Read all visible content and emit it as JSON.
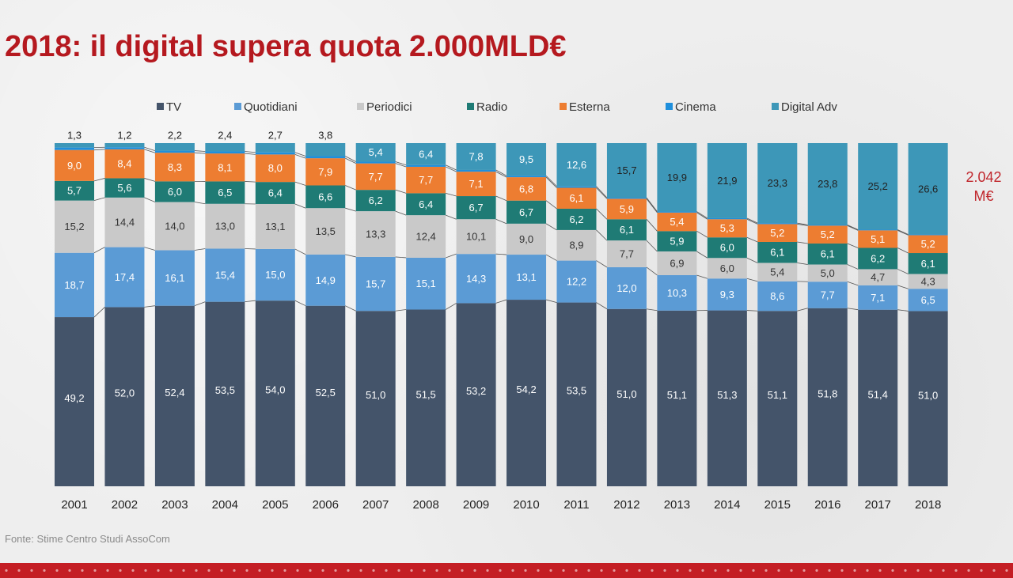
{
  "title": "2018: il digital supera quota 2.000MLD€",
  "total_label": {
    "line1": "2.042",
    "line2": "M€"
  },
  "source": "Fonte: Stime Centro Studi AssoCom",
  "colors": {
    "title": "#b5191f",
    "TV": "#44546a",
    "Quotidiani": "#5b9bd5",
    "Periodici": "#c9c9c9",
    "Radio": "#1f7b75",
    "Esterna": "#ed7d31",
    "Cinema": "#1f8fdc",
    "Digital Adv": "#3d97b8"
  },
  "chart_data": {
    "type": "bar",
    "stacked": true,
    "percent": true,
    "legend_position": "top",
    "grid": false,
    "categories": [
      "2001",
      "2002",
      "2003",
      "2004",
      "2005",
      "2006",
      "2007",
      "2008",
      "2009",
      "2010",
      "2011",
      "2012",
      "2013",
      "2014",
      "2015",
      "2016",
      "2017",
      "2018"
    ],
    "series": [
      {
        "name": "TV",
        "values": [
          49.2,
          52.0,
          52.4,
          53.5,
          54.0,
          52.5,
          51.0,
          51.5,
          53.2,
          54.2,
          53.5,
          51.0,
          51.1,
          51.3,
          51.1,
          51.8,
          51.4,
          51.0
        ],
        "labels": [
          "49,2",
          "52,0",
          "52,4",
          "53,5",
          "54,0",
          "52,5",
          "51,0",
          "51,5",
          "53,2",
          "54,2",
          "53,5",
          "51,0",
          "51,1",
          "51,3",
          "51,1",
          "51,8",
          "51,4",
          "51,0"
        ]
      },
      {
        "name": "Quotidiani",
        "values": [
          18.7,
          17.4,
          16.1,
          15.4,
          15.0,
          14.9,
          15.7,
          15.1,
          14.3,
          13.1,
          12.2,
          12.0,
          10.3,
          9.3,
          8.6,
          7.7,
          7.1,
          6.5
        ],
        "labels": [
          "18,7",
          "17,4",
          "16,1",
          "15,4",
          "15,0",
          "14,9",
          "15,7",
          "15,1",
          "14,3",
          "13,1",
          "12,2",
          "12,0",
          "10,3",
          "9,3",
          "8,6",
          "7,7",
          "7,1",
          "6,5"
        ]
      },
      {
        "name": "Periodici",
        "values": [
          15.2,
          14.4,
          14.0,
          13.0,
          13.1,
          13.5,
          13.3,
          12.4,
          10.1,
          9.0,
          8.9,
          7.7,
          6.9,
          6.0,
          5.4,
          5.0,
          4.7,
          4.3
        ],
        "labels": [
          "15,2",
          "14,4",
          "14,0",
          "13,0",
          "13,1",
          "13,5",
          "13,3",
          "12,4",
          "10,1",
          "9,0",
          "8,9",
          "7,7",
          "6,9",
          "6,0",
          "5,4",
          "5,0",
          "4,7",
          "4,3"
        ]
      },
      {
        "name": "Radio",
        "values": [
          5.7,
          5.6,
          6.0,
          6.5,
          6.4,
          6.6,
          6.2,
          6.4,
          6.7,
          6.7,
          6.2,
          6.1,
          5.9,
          6.0,
          6.1,
          6.1,
          6.2,
          6.1
        ],
        "labels": [
          "5,7",
          "5,6",
          "6,0",
          "6,5",
          "6,4",
          "6,6",
          "6,2",
          "6,4",
          "6,7",
          "6,7",
          "6,2",
          "6,1",
          "5,9",
          "6,0",
          "6,1",
          "6,1",
          "6,2",
          "6,1"
        ]
      },
      {
        "name": "Esterna",
        "values": [
          9.0,
          8.4,
          8.3,
          8.1,
          8.0,
          7.9,
          7.7,
          7.7,
          7.1,
          6.8,
          6.1,
          5.9,
          5.4,
          5.3,
          5.2,
          5.2,
          5.1,
          5.2
        ],
        "labels": [
          "9,0",
          "8,4",
          "8,3",
          "8,1",
          "8,0",
          "7,9",
          "7,7",
          "7,7",
          "7,1",
          "6,8",
          "6,1",
          "5,9",
          "5,4",
          "5,3",
          "5,2",
          "5,2",
          "5,1",
          "5,2"
        ]
      },
      {
        "name": "Cinema",
        "values": [
          0.7,
          0.6,
          0.6,
          0.6,
          0.6,
          0.6,
          0.5,
          0.5,
          0.5,
          0.4,
          0.4,
          0.3,
          0.3,
          0.3,
          0.3,
          0.2,
          0.2,
          0.2
        ],
        "labels": []
      },
      {
        "name": "Digital Adv",
        "values": [
          1.3,
          1.2,
          2.2,
          2.4,
          2.7,
          3.8,
          5.4,
          6.4,
          7.8,
          9.5,
          12.6,
          15.7,
          19.9,
          21.9,
          23.3,
          23.8,
          25.2,
          26.6
        ],
        "labels": [
          "1,3",
          "1,2",
          "2,2",
          "2,4",
          "2,7",
          "3,8",
          "5,4",
          "6,4",
          "7,8",
          "9,5",
          "12,6",
          "15,7",
          "19,9",
          "21,9",
          "23,3",
          "23,8",
          "25,2",
          "26,6"
        ]
      }
    ]
  }
}
